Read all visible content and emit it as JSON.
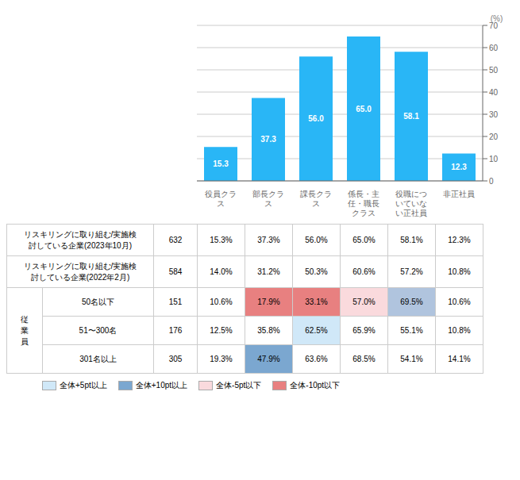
{
  "chart_data": [
    {
      "type": "bar",
      "categories": [
        "役員クラ\nス",
        "部長クラ\nス",
        "課長クラ\nス",
        "係長・主\n任・職長\nクラス",
        "役職につ\nいていな\nい正社員",
        "非正社員"
      ],
      "values": [
        15.3,
        37.3,
        56.0,
        65.0,
        58.1,
        12.3
      ],
      "value_labels": [
        "15.3",
        "37.3",
        "56.0",
        "65.0",
        "58.1",
        "12.3"
      ],
      "data_labels": true,
      "color": "#29B6F6",
      "ylim": [
        0,
        70
      ],
      "yticks": [
        0,
        10,
        20,
        30,
        40,
        50,
        60,
        70
      ],
      "grid": true,
      "y_label": "(%)"
    },
    {
      "type": "table",
      "series": [
        {
          "name": "リスキリングに取り組む/実施検\n討している企業(2023年10月)",
          "n": 632,
          "values": [
            15.3,
            37.3,
            56.0,
            65.0,
            58.1,
            12.3
          ],
          "value_labels": [
            "15.3%",
            "37.3%",
            "56.0%",
            "65.0%",
            "58.1%",
            "12.3%"
          ],
          "colors": [
            "white",
            "white",
            "white",
            "white",
            "white",
            "white"
          ]
        },
        {
          "name": "リスキリングに取り組む/実施検\n討している企業(2022年2月)",
          "n": 584,
          "values": [
            14.0,
            31.2,
            50.3,
            60.6,
            57.2,
            10.8
          ],
          "value_labels": [
            "14.0%",
            "31.2%",
            "50.3%",
            "60.6%",
            "57.2%",
            "10.8%"
          ],
          "colors": [
            "white",
            "white",
            "white",
            "white",
            "white",
            "white"
          ]
        }
      ],
      "group": {
        "name": "従\n業\n員",
        "series": [
          {
            "name": "50名以下",
            "n": 151,
            "values": [
              10.6,
              17.9,
              33.1,
              57.0,
              69.5,
              10.6
            ],
            "value_labels": [
              "10.6%",
              "17.9%",
              "33.1%",
              "57.0%",
              "69.5%",
              "10.6%"
            ],
            "colors": [
              "white",
              "#E88080",
              "#E88080",
              "#FADADD",
              "#B0C4DE",
              "white"
            ]
          },
          {
            "name": "51〜300名",
            "n": 176,
            "values": [
              12.5,
              35.8,
              62.5,
              65.9,
              55.1,
              10.8
            ],
            "value_labels": [
              "12.5%",
              "35.8%",
              "62.5%",
              "65.9%",
              "55.1%",
              "10.8%"
            ],
            "colors": [
              "white",
              "white",
              "#D0E8F8",
              "white",
              "white",
              "white"
            ]
          },
          {
            "name": "301名以上",
            "n": 305,
            "values": [
              19.3,
              47.9,
              63.6,
              68.5,
              54.1,
              14.1
            ],
            "value_labels": [
              "19.3%",
              "47.9%",
              "63.6%",
              "68.5%",
              "54.1%",
              "14.1%"
            ],
            "colors": [
              "white",
              "#7BA7D0",
              "white",
              "white",
              "white",
              "white"
            ]
          }
        ]
      },
      "legend_items": [
        {
          "label": "全体+5pt以上",
          "color": "#D0E8F8"
        },
        {
          "label": "全体+10pt以上",
          "color": "#7BA7D0"
        },
        {
          "label": "全体-5pt以下",
          "color": "#FADADD"
        },
        {
          "label": "全体-10pt以下",
          "color": "#E88080"
        }
      ]
    }
  ]
}
